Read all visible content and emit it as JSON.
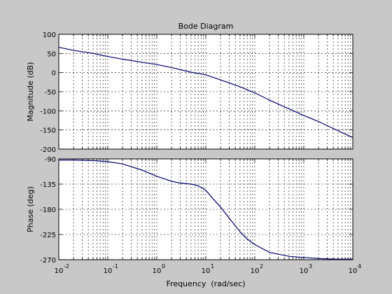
{
  "figure": {
    "background": "#c8c8c8",
    "axes_background": "#ffffff",
    "line_color": "#00006e",
    "grid_color": "#000000"
  },
  "chart_data": [
    {
      "type": "line",
      "title": "Bode Diagram",
      "xlabel": "",
      "ylabel": "Magnitude (dB)",
      "xscale": "log",
      "xlim": [
        0.01,
        10000
      ],
      "ylim": [
        -200,
        100
      ],
      "yticks": [
        100,
        50,
        0,
        -50,
        -100,
        -150,
        -200
      ],
      "yticklabels": [
        "100",
        "50",
        "0",
        "-50",
        "-100",
        "-150",
        "-200"
      ],
      "grid": "on",
      "series": [
        {
          "x": [
            0.01,
            0.02,
            0.05,
            0.1,
            0.2,
            0.5,
            1,
            2,
            5,
            10,
            20,
            50,
            100,
            200,
            500,
            1000,
            2000,
            5000,
            10000
          ],
          "y": [
            66,
            58,
            50,
            42,
            35,
            27,
            21,
            13,
            1,
            -6,
            -19,
            -37,
            -53,
            -72,
            -95,
            -112,
            -128,
            -152,
            -170
          ]
        }
      ]
    },
    {
      "type": "line",
      "title": "",
      "xlabel": "Frequency  (rad/sec)",
      "ylabel": "Phase (deg)",
      "xscale": "log",
      "xlim": [
        0.01,
        10000
      ],
      "ylim": [
        -270,
        -90
      ],
      "yticks": [
        -90,
        -135,
        -180,
        -225,
        -270
      ],
      "yticklabels": [
        "-90",
        "-135",
        "-180",
        "-225",
        "-270"
      ],
      "xticks": [
        0.01,
        0.1,
        1,
        10,
        100,
        1000,
        10000
      ],
      "xtick_mantissa": "10",
      "xtick_exponents": [
        "-2",
        "-1",
        "0",
        "1",
        "2",
        "3",
        "4"
      ],
      "grid": "on",
      "series": [
        {
          "x": [
            0.01,
            0.02,
            0.05,
            0.1,
            0.2,
            0.5,
            1,
            2,
            3,
            5,
            7,
            10,
            15,
            20,
            30,
            50,
            70,
            100,
            200,
            500,
            1000,
            2000,
            5000,
            10000
          ],
          "y": [
            -92,
            -92,
            -93,
            -95,
            -99,
            -110,
            -121,
            -130,
            -133,
            -135,
            -138,
            -146,
            -164,
            -176,
            -196,
            -220,
            -233,
            -243,
            -257,
            -264,
            -266,
            -268,
            -269,
            -269
          ]
        }
      ]
    }
  ]
}
